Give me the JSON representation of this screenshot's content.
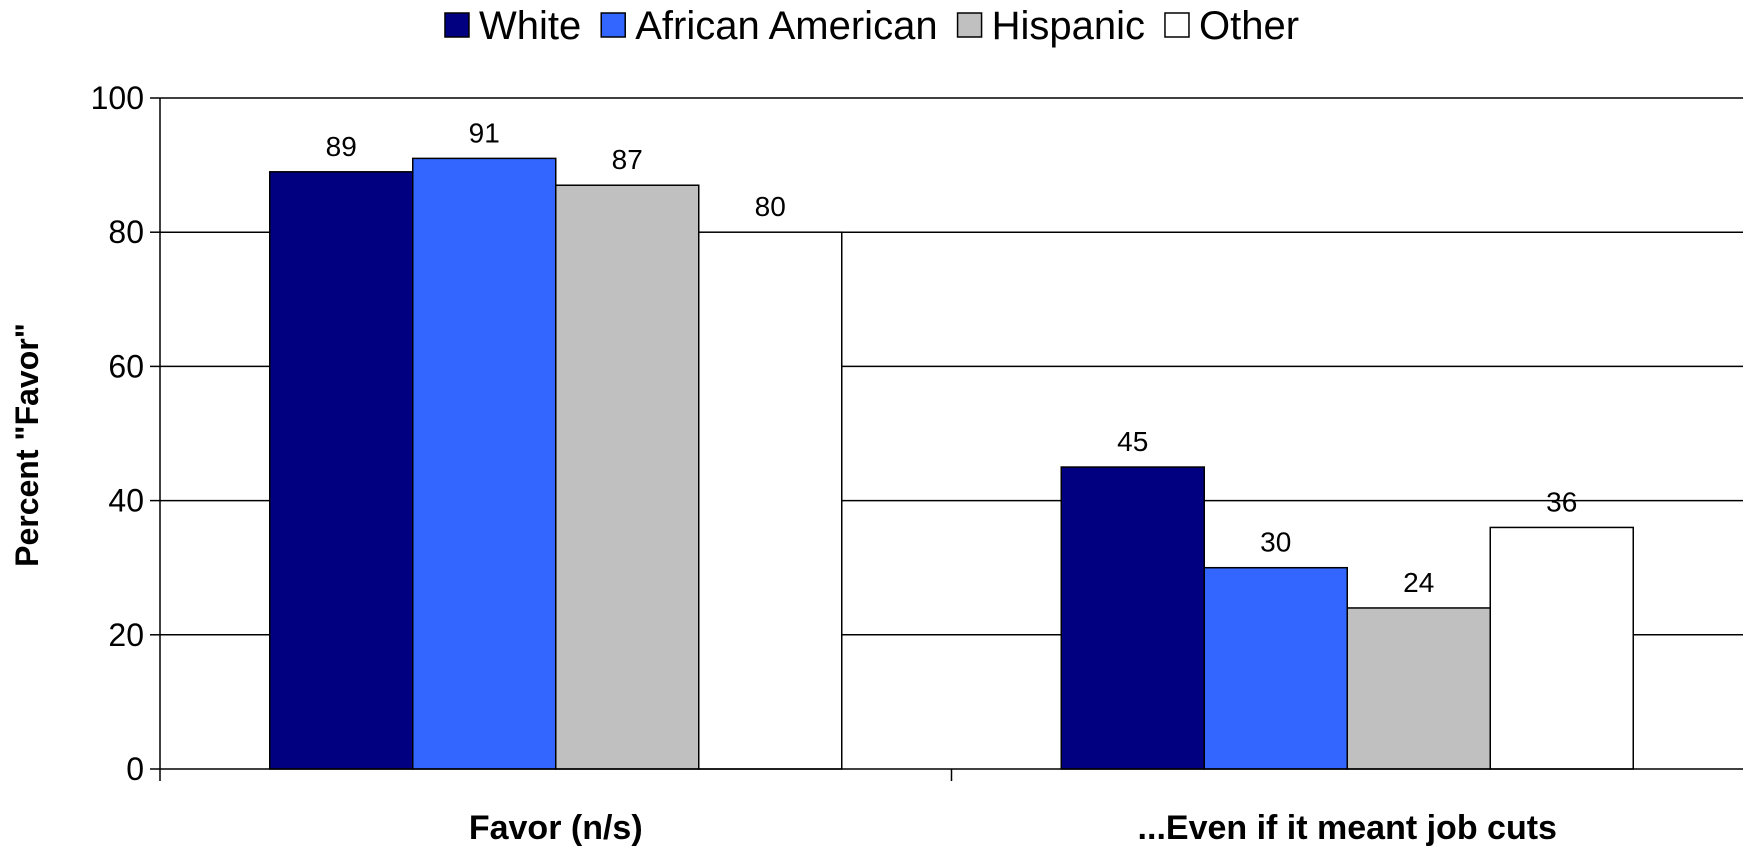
{
  "chart_data": {
    "type": "bar",
    "title": "",
    "xlabel": "",
    "ylabel": "Percent \"Favor\"",
    "ylim": [
      0,
      100
    ],
    "yticks": [
      0,
      20,
      40,
      60,
      80,
      100
    ],
    "grid": true,
    "legend_position": "top",
    "categories": [
      "Favor (n/s)",
      "...Even if it meant job cuts"
    ],
    "series": [
      {
        "name": "White",
        "color": "#000080",
        "values": [
          89,
          45
        ]
      },
      {
        "name": "African American",
        "color": "#3366FF",
        "values": [
          91,
          30
        ]
      },
      {
        "name": "Hispanic",
        "color": "#C0C0C0",
        "values": [
          87,
          24
        ]
      },
      {
        "name": "Other",
        "color": "#FFFFFF",
        "values": [
          80,
          36
        ]
      }
    ]
  }
}
